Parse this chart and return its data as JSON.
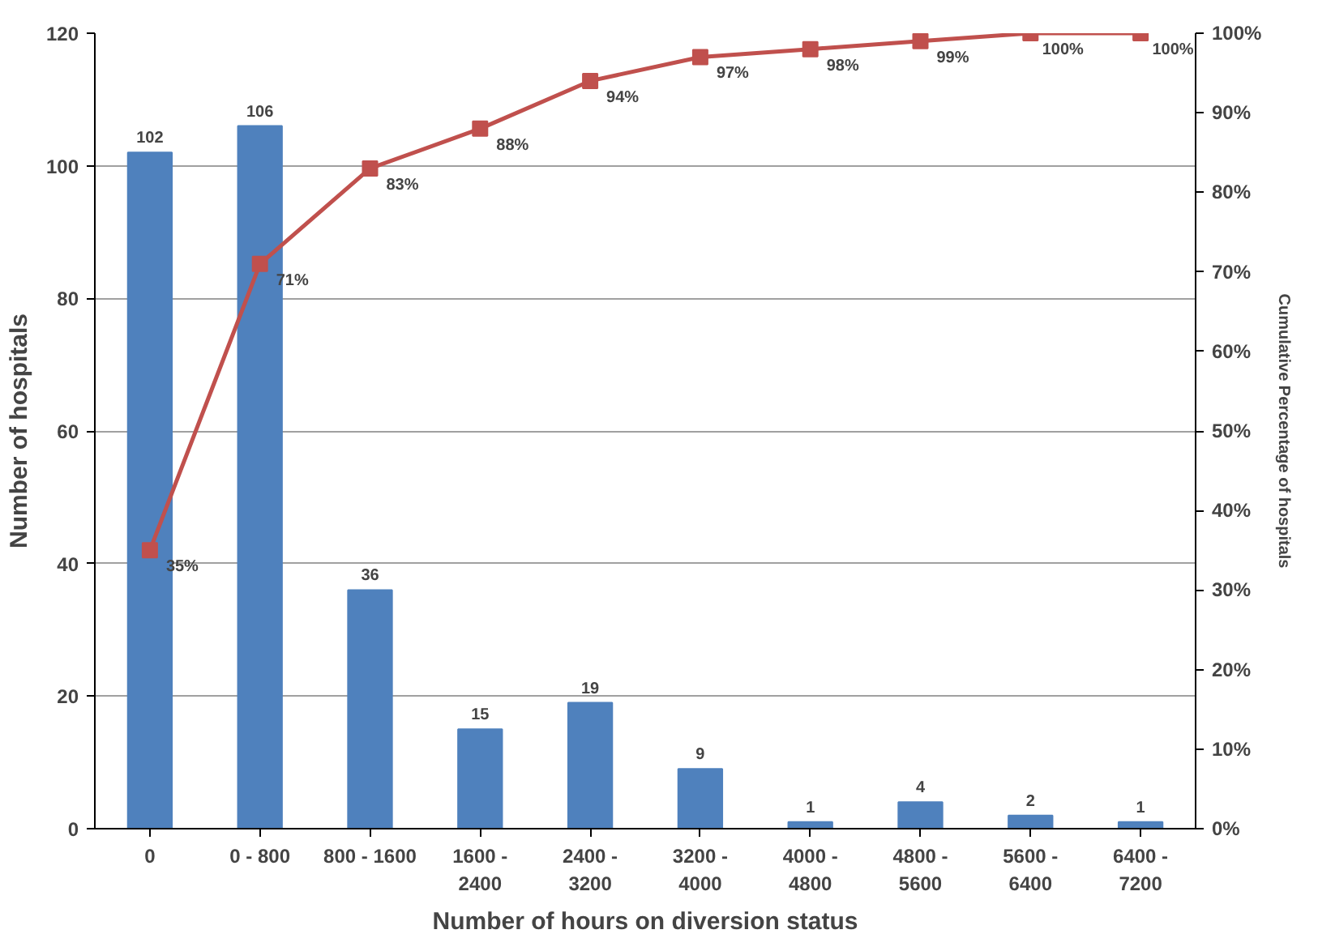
{
  "chart_data": {
    "type": "bar",
    "xlabel": "Number of hours on diversion status",
    "ylabel": "Number of hospitals",
    "y2label": "Cumulative Percentage of hospitals",
    "categories": [
      "0",
      "0 - 800",
      "800 - 1600",
      "1600 - 2400",
      "2400 - 3200",
      "3200 - 4000",
      "4000 - 4800",
      "4800 - 5600",
      "5600 - 6400",
      "6400 - 7200"
    ],
    "series": [
      {
        "color": "#4f81bd",
        "values": [
          102,
          106,
          36,
          15,
          19,
          9,
          1,
          4,
          2,
          1
        ],
        "value_labels": [
          "102",
          "106",
          "36",
          "15",
          "19",
          "9",
          "1",
          "4",
          "2",
          "1"
        ]
      },
      {
        "type": "line",
        "axis": "y2",
        "color": "#c0504d",
        "marker": "square",
        "line_style": "solid",
        "values": [
          35,
          71,
          83,
          88,
          94,
          97,
          98,
          99,
          100,
          100
        ],
        "value_labels": [
          "35%",
          "71%",
          "83%",
          "88%",
          "94%",
          "97%",
          "98%",
          "99%",
          "100%",
          "100%"
        ]
      }
    ],
    "ylim": [
      0,
      120
    ],
    "yticks": [
      0,
      20,
      40,
      60,
      80,
      100,
      120
    ],
    "y2lim": [
      0,
      100
    ],
    "y2ticks": [
      {
        "value": 0,
        "label": "0%"
      },
      {
        "value": 10,
        "label": "10%"
      },
      {
        "value": 20,
        "label": "20%"
      },
      {
        "value": 30,
        "label": "30%"
      },
      {
        "value": 40,
        "label": "40%"
      },
      {
        "value": 50,
        "label": "50%"
      },
      {
        "value": 60,
        "label": "60%"
      },
      {
        "value": 70,
        "label": "70%"
      },
      {
        "value": 80,
        "label": "80%"
      },
      {
        "value": 90,
        "label": "90%"
      },
      {
        "value": 100,
        "label": "100%"
      }
    ],
    "grid": "y"
  }
}
